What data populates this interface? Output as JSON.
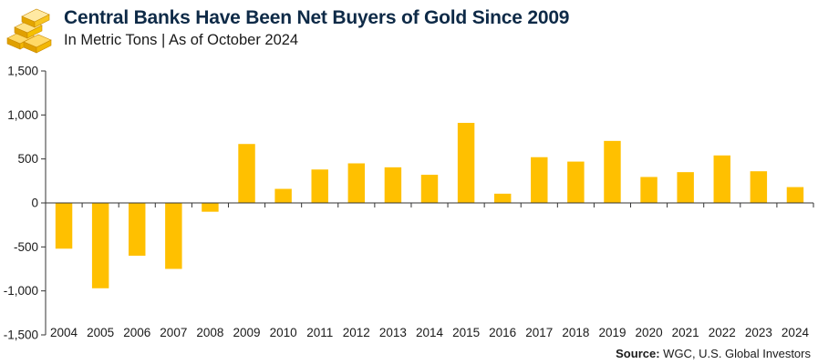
{
  "header": {
    "title": "Central Banks Have Been Net Buyers of Gold Since 2009",
    "subtitle": "In Metric Tons | As of October 2024"
  },
  "source": {
    "label": "Source:",
    "text": "WGC, U.S. Global Investors"
  },
  "colors": {
    "bar": "#ffc000",
    "title": "#0e2a47",
    "axis": "#333333"
  },
  "chart_data": {
    "type": "bar",
    "title": "Central Banks Have Been Net Buyers of Gold Since 2009",
    "subtitle": "In Metric Tons | As of October 2024",
    "categories": [
      "2004",
      "2005",
      "2006",
      "2007",
      "2008",
      "2009",
      "2010",
      "2011",
      "2012",
      "2013",
      "2014",
      "2015",
      "2016",
      "2017",
      "2018",
      "2019",
      "2020",
      "2021",
      "2022",
      "2023",
      "2024"
    ],
    "values": [
      -520,
      -970,
      -600,
      -750,
      -100,
      670,
      160,
      380,
      450,
      405,
      320,
      910,
      105,
      520,
      470,
      705,
      295,
      350,
      540,
      360,
      180
    ],
    "ylim": [
      -1500,
      1500
    ],
    "yticks": [
      -1500,
      -1000,
      -500,
      0,
      500,
      1000,
      1500
    ],
    "ytick_labels": [
      "-1,500",
      "-1,000",
      "-500",
      "0",
      "500",
      "1,000",
      "1,500"
    ],
    "xlabel": "",
    "ylabel": "",
    "grid": false,
    "legend": "none"
  }
}
